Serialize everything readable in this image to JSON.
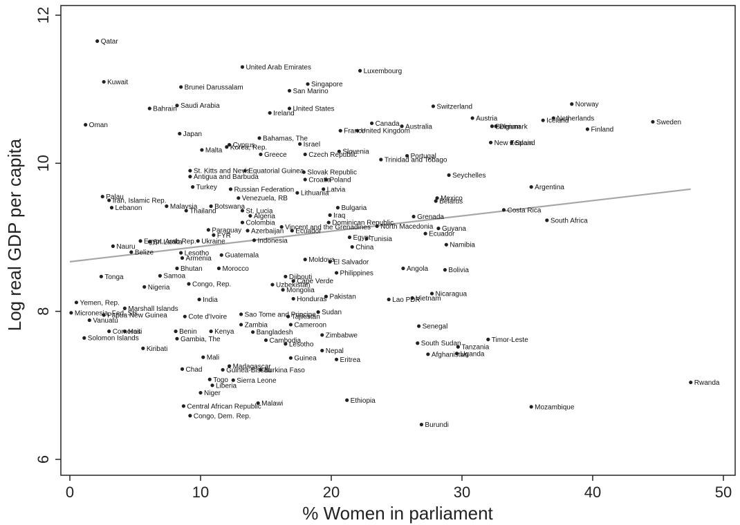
{
  "chart_data": {
    "type": "scatter",
    "title": "",
    "xlabel": "% Women in parliament",
    "ylabel": "Log real GDP per capita",
    "xlim": [
      0,
      50
    ],
    "ylim": [
      6,
      12
    ],
    "xticks": [
      0,
      10,
      20,
      30,
      40,
      50
    ],
    "yticks": [
      6,
      8,
      10,
      12
    ],
    "grid": false,
    "legend": "none",
    "colors": {
      "points": "#222222",
      "fit_line": "#a6a6a6",
      "frame": "#222222"
    },
    "fit_line": {
      "x": [
        0,
        47.5
      ],
      "y": [
        8.67,
        9.65
      ]
    },
    "points": [
      {
        "label": "Qatar",
        "x": 2.1,
        "y": 11.65
      },
      {
        "label": "United Arab Emirates",
        "x": 13.2,
        "y": 11.3
      },
      {
        "label": "Luxembourg",
        "x": 22.2,
        "y": 11.25
      },
      {
        "label": "Kuwait",
        "x": 2.6,
        "y": 11.1
      },
      {
        "label": "Singapore",
        "x": 18.2,
        "y": 11.07
      },
      {
        "label": "Brunei Darussalam",
        "x": 8.5,
        "y": 11.03
      },
      {
        "label": "San Marino",
        "x": 16.8,
        "y": 10.98
      },
      {
        "label": "Saudi Arabia",
        "x": 8.2,
        "y": 10.78
      },
      {
        "label": "Bahrain",
        "x": 6.1,
        "y": 10.74
      },
      {
        "label": "United States",
        "x": 16.8,
        "y": 10.74
      },
      {
        "label": "Switzerland",
        "x": 27.8,
        "y": 10.77
      },
      {
        "label": "Norway",
        "x": 38.4,
        "y": 10.8
      },
      {
        "label": "Ireland",
        "x": 15.3,
        "y": 10.68
      },
      {
        "label": "Netherlands",
        "x": 37.0,
        "y": 10.61
      },
      {
        "label": "Iceland",
        "x": 36.2,
        "y": 10.58
      },
      {
        "label": "Austria",
        "x": 30.8,
        "y": 10.61
      },
      {
        "label": "Sweden",
        "x": 44.6,
        "y": 10.56
      },
      {
        "label": "Oman",
        "x": 1.2,
        "y": 10.52
      },
      {
        "label": "Canada",
        "x": 23.1,
        "y": 10.54
      },
      {
        "label": "Australia",
        "x": 25.4,
        "y": 10.5
      },
      {
        "label": "Denmark",
        "x": 32.6,
        "y": 10.5
      },
      {
        "label": "Belgium",
        "x": 32.3,
        "y": 10.5
      },
      {
        "label": "Finland",
        "x": 39.6,
        "y": 10.46
      },
      {
        "label": "United Kingdom",
        "x": 22.0,
        "y": 10.44
      },
      {
        "label": "France",
        "x": 20.7,
        "y": 10.44
      },
      {
        "label": "Japan",
        "x": 8.4,
        "y": 10.4
      },
      {
        "label": "Bahamas, The",
        "x": 14.5,
        "y": 10.34
      },
      {
        "label": "Israel",
        "x": 17.6,
        "y": 10.26
      },
      {
        "label": "Cyprus",
        "x": 12.2,
        "y": 10.25
      },
      {
        "label": "Korea, Rep.",
        "x": 12.0,
        "y": 10.22
      },
      {
        "label": "New Zealand",
        "x": 32.2,
        "y": 10.28
      },
      {
        "label": "Spain",
        "x": 33.8,
        "y": 10.28
      },
      {
        "label": "Malta",
        "x": 10.1,
        "y": 10.18
      },
      {
        "label": "Greece",
        "x": 14.6,
        "y": 10.12
      },
      {
        "label": "Czech Republic",
        "x": 18.0,
        "y": 10.12
      },
      {
        "label": "Slovenia",
        "x": 20.6,
        "y": 10.16
      },
      {
        "label": "Portugal",
        "x": 25.8,
        "y": 10.1
      },
      {
        "label": "Trinidad and Tobago",
        "x": 23.8,
        "y": 10.05
      },
      {
        "label": "St. Kitts and Nevis",
        "x": 9.2,
        "y": 9.9
      },
      {
        "label": "Equatorial Guinea",
        "x": 13.4,
        "y": 9.9
      },
      {
        "label": "Slovak Republic",
        "x": 17.9,
        "y": 9.88
      },
      {
        "label": "Antigua and Barbuda",
        "x": 9.2,
        "y": 9.82
      },
      {
        "label": "Seychelles",
        "x": 29.0,
        "y": 9.84
      },
      {
        "label": "Croatia",
        "x": 18.0,
        "y": 9.78
      },
      {
        "label": "Poland",
        "x": 19.6,
        "y": 9.78
      },
      {
        "label": "Turkey",
        "x": 9.4,
        "y": 9.68
      },
      {
        "label": "Argentina",
        "x": 35.3,
        "y": 9.68
      },
      {
        "label": "Russian Federation",
        "x": 12.3,
        "y": 9.65
      },
      {
        "label": "Latvia",
        "x": 19.4,
        "y": 9.65
      },
      {
        "label": "Lithuania",
        "x": 17.4,
        "y": 9.6
      },
      {
        "label": "Venezuela, RB",
        "x": 12.9,
        "y": 9.53
      },
      {
        "label": "Palau",
        "x": 2.5,
        "y": 9.55
      },
      {
        "label": "Iran, Islamic Rep.",
        "x": 3.0,
        "y": 9.5
      },
      {
        "label": "Mexico",
        "x": 28.1,
        "y": 9.53
      },
      {
        "label": "Belarus",
        "x": 28.0,
        "y": 9.49
      },
      {
        "label": "Lebanon",
        "x": 3.2,
        "y": 9.4
      },
      {
        "label": "Malaysia",
        "x": 7.4,
        "y": 9.42
      },
      {
        "label": "Botswana",
        "x": 10.8,
        "y": 9.42
      },
      {
        "label": "Thailand",
        "x": 8.9,
        "y": 9.36
      },
      {
        "label": "St. Lucia",
        "x": 13.2,
        "y": 9.36
      },
      {
        "label": "Bulgaria",
        "x": 20.5,
        "y": 9.4
      },
      {
        "label": "Costa Rica",
        "x": 33.2,
        "y": 9.37
      },
      {
        "label": "Algeria",
        "x": 13.8,
        "y": 9.29
      },
      {
        "label": "Iraq",
        "x": 19.9,
        "y": 9.3
      },
      {
        "label": "Grenada",
        "x": 26.3,
        "y": 9.28
      },
      {
        "label": "South Africa",
        "x": 36.5,
        "y": 9.23
      },
      {
        "label": "Colombia",
        "x": 13.2,
        "y": 9.2
      },
      {
        "label": "Dominican Republic",
        "x": 19.8,
        "y": 9.2
      },
      {
        "label": "Vincent and the Grenadines",
        "x": 16.2,
        "y": 9.14
      },
      {
        "label": "North Macedonia",
        "x": 23.5,
        "y": 9.15
      },
      {
        "label": "Guyana",
        "x": 28.2,
        "y": 9.12
      },
      {
        "label": "Paraguay",
        "x": 10.6,
        "y": 9.1
      },
      {
        "label": "Azerbaijan",
        "x": 13.6,
        "y": 9.09
      },
      {
        "label": "Ecuador",
        "x": 17.0,
        "y": 9.09
      },
      {
        "label": "Ecuador",
        "x": 27.2,
        "y": 9.05
      },
      {
        "label": "FYR",
        "x": 11.0,
        "y": 9.03
      },
      {
        "label": "Egypt",
        "x": 21.4,
        "y": 9.0
      },
      {
        "label": "Tunisia",
        "x": 22.7,
        "y": 8.98
      },
      {
        "label": "Indonesia",
        "x": 14.1,
        "y": 8.96
      },
      {
        "label": "Egypt, Arab Rep.",
        "x": 5.4,
        "y": 8.95
      },
      {
        "label": "Sri Lanka",
        "x": 6.1,
        "y": 8.94
      },
      {
        "label": "Ukraine",
        "x": 9.8,
        "y": 8.95
      },
      {
        "label": "Nauru",
        "x": 3.3,
        "y": 8.88
      },
      {
        "label": "China",
        "x": 21.6,
        "y": 8.87
      },
      {
        "label": "Namibia",
        "x": 28.8,
        "y": 8.9
      },
      {
        "label": "Belize",
        "x": 4.7,
        "y": 8.8
      },
      {
        "label": "Lesotho",
        "x": 8.5,
        "y": 8.79
      },
      {
        "label": "Guatemala",
        "x": 11.6,
        "y": 8.76
      },
      {
        "label": "Armenia",
        "x": 8.6,
        "y": 8.72
      },
      {
        "label": "Moldova",
        "x": 18.0,
        "y": 8.7
      },
      {
        "label": "El Salvador",
        "x": 19.9,
        "y": 8.67
      },
      {
        "label": "Bhutan",
        "x": 8.2,
        "y": 8.58
      },
      {
        "label": "Morocco",
        "x": 11.4,
        "y": 8.58
      },
      {
        "label": "Angola",
        "x": 25.5,
        "y": 8.58
      },
      {
        "label": "Bolivia",
        "x": 28.7,
        "y": 8.56
      },
      {
        "label": "Philippines",
        "x": 20.4,
        "y": 8.52
      },
      {
        "label": "Tonga",
        "x": 2.4,
        "y": 8.47
      },
      {
        "label": "Samoa",
        "x": 6.9,
        "y": 8.48
      },
      {
        "label": "Djibouti",
        "x": 16.5,
        "y": 8.47
      },
      {
        "label": "Cape Verde",
        "x": 17.1,
        "y": 8.41
      },
      {
        "label": "Nigeria",
        "x": 5.7,
        "y": 8.33
      },
      {
        "label": "Congo, Rep.",
        "x": 9.1,
        "y": 8.37
      },
      {
        "label": "Uzbekistan",
        "x": 15.5,
        "y": 8.36
      },
      {
        "label": "Mongolia",
        "x": 16.3,
        "y": 8.29
      },
      {
        "label": "Nicaragua",
        "x": 27.7,
        "y": 8.24
      },
      {
        "label": "Pakistan",
        "x": 19.6,
        "y": 8.2
      },
      {
        "label": "Honduras",
        "x": 17.1,
        "y": 8.17
      },
      {
        "label": "Lao PDR",
        "x": 24.4,
        "y": 8.16
      },
      {
        "label": "Vietnam",
        "x": 26.2,
        "y": 8.18
      },
      {
        "label": "India",
        "x": 9.9,
        "y": 8.16
      },
      {
        "label": "Yemen, Rep.",
        "x": 0.5,
        "y": 8.12
      },
      {
        "label": "Marshall Islands",
        "x": 4.2,
        "y": 8.04
      },
      {
        "label": "Sudan",
        "x": 19.0,
        "y": 7.99
      },
      {
        "label": "Micronesia, Fed. Sts.",
        "x": 0.1,
        "y": 7.98
      },
      {
        "label": "Papua New Guinea",
        "x": 2.6,
        "y": 7.95
      },
      {
        "label": "Sao Tome and Principe",
        "x": 13.1,
        "y": 7.96
      },
      {
        "label": "Cote d'Ivoire",
        "x": 8.8,
        "y": 7.93
      },
      {
        "label": "Tajikistan",
        "x": 16.7,
        "y": 7.93
      },
      {
        "label": "Vanuatu",
        "x": 1.5,
        "y": 7.88
      },
      {
        "label": "Zambia",
        "x": 13.1,
        "y": 7.82
      },
      {
        "label": "Cameroon",
        "x": 16.9,
        "y": 7.82
      },
      {
        "label": "Senegal",
        "x": 26.7,
        "y": 7.8
      },
      {
        "label": "Comoros",
        "x": 3.0,
        "y": 7.73
      },
      {
        "label": "Haiti",
        "x": 4.2,
        "y": 7.73
      },
      {
        "label": "Benin",
        "x": 8.1,
        "y": 7.73
      },
      {
        "label": "Kenya",
        "x": 10.8,
        "y": 7.73
      },
      {
        "label": "Bangladesh",
        "x": 14.0,
        "y": 7.72
      },
      {
        "label": "Zimbabwe",
        "x": 19.3,
        "y": 7.68
      },
      {
        "label": "Solomon Islands",
        "x": 1.1,
        "y": 7.64
      },
      {
        "label": "Gambia, The",
        "x": 8.2,
        "y": 7.63
      },
      {
        "label": "Cambodia",
        "x": 15.0,
        "y": 7.61
      },
      {
        "label": "Timor-Leste",
        "x": 32.0,
        "y": 7.62
      },
      {
        "label": "Lesotho",
        "x": 16.5,
        "y": 7.56
      },
      {
        "label": "South Sudan",
        "x": 26.6,
        "y": 7.57
      },
      {
        "label": "Tanzania",
        "x": 29.7,
        "y": 7.52
      },
      {
        "label": "Kiribati",
        "x": 5.6,
        "y": 7.5
      },
      {
        "label": "Nepal",
        "x": 19.3,
        "y": 7.47
      },
      {
        "label": "Uganda",
        "x": 29.6,
        "y": 7.43
      },
      {
        "label": "Afghanistan",
        "x": 27.4,
        "y": 7.42
      },
      {
        "label": "Mali",
        "x": 10.2,
        "y": 7.38
      },
      {
        "label": "Guinea",
        "x": 16.9,
        "y": 7.37
      },
      {
        "label": "Eritrea",
        "x": 20.4,
        "y": 7.35
      },
      {
        "label": "Madagascar",
        "x": 12.2,
        "y": 7.26
      },
      {
        "label": "Chad",
        "x": 8.6,
        "y": 7.22
      },
      {
        "label": "Guinea-Bissau",
        "x": 11.7,
        "y": 7.21
      },
      {
        "label": "Burkina Faso",
        "x": 14.6,
        "y": 7.21
      },
      {
        "label": "Togo",
        "x": 10.7,
        "y": 7.08
      },
      {
        "label": "Sierra Leone",
        "x": 12.5,
        "y": 7.07
      },
      {
        "label": "Rwanda",
        "x": 47.5,
        "y": 7.04
      },
      {
        "label": "Liberia",
        "x": 10.9,
        "y": 7.0
      },
      {
        "label": "Niger",
        "x": 10.0,
        "y": 6.9
      },
      {
        "label": "Ethiopia",
        "x": 21.2,
        "y": 6.8
      },
      {
        "label": "Malawi",
        "x": 14.4,
        "y": 6.76
      },
      {
        "label": "Central African Republic",
        "x": 8.7,
        "y": 6.72
      },
      {
        "label": "Mozambique",
        "x": 35.3,
        "y": 6.71
      },
      {
        "label": "Congo, Dem. Rep.",
        "x": 9.2,
        "y": 6.59
      },
      {
        "label": "Burundi",
        "x": 26.9,
        "y": 6.47
      }
    ]
  }
}
